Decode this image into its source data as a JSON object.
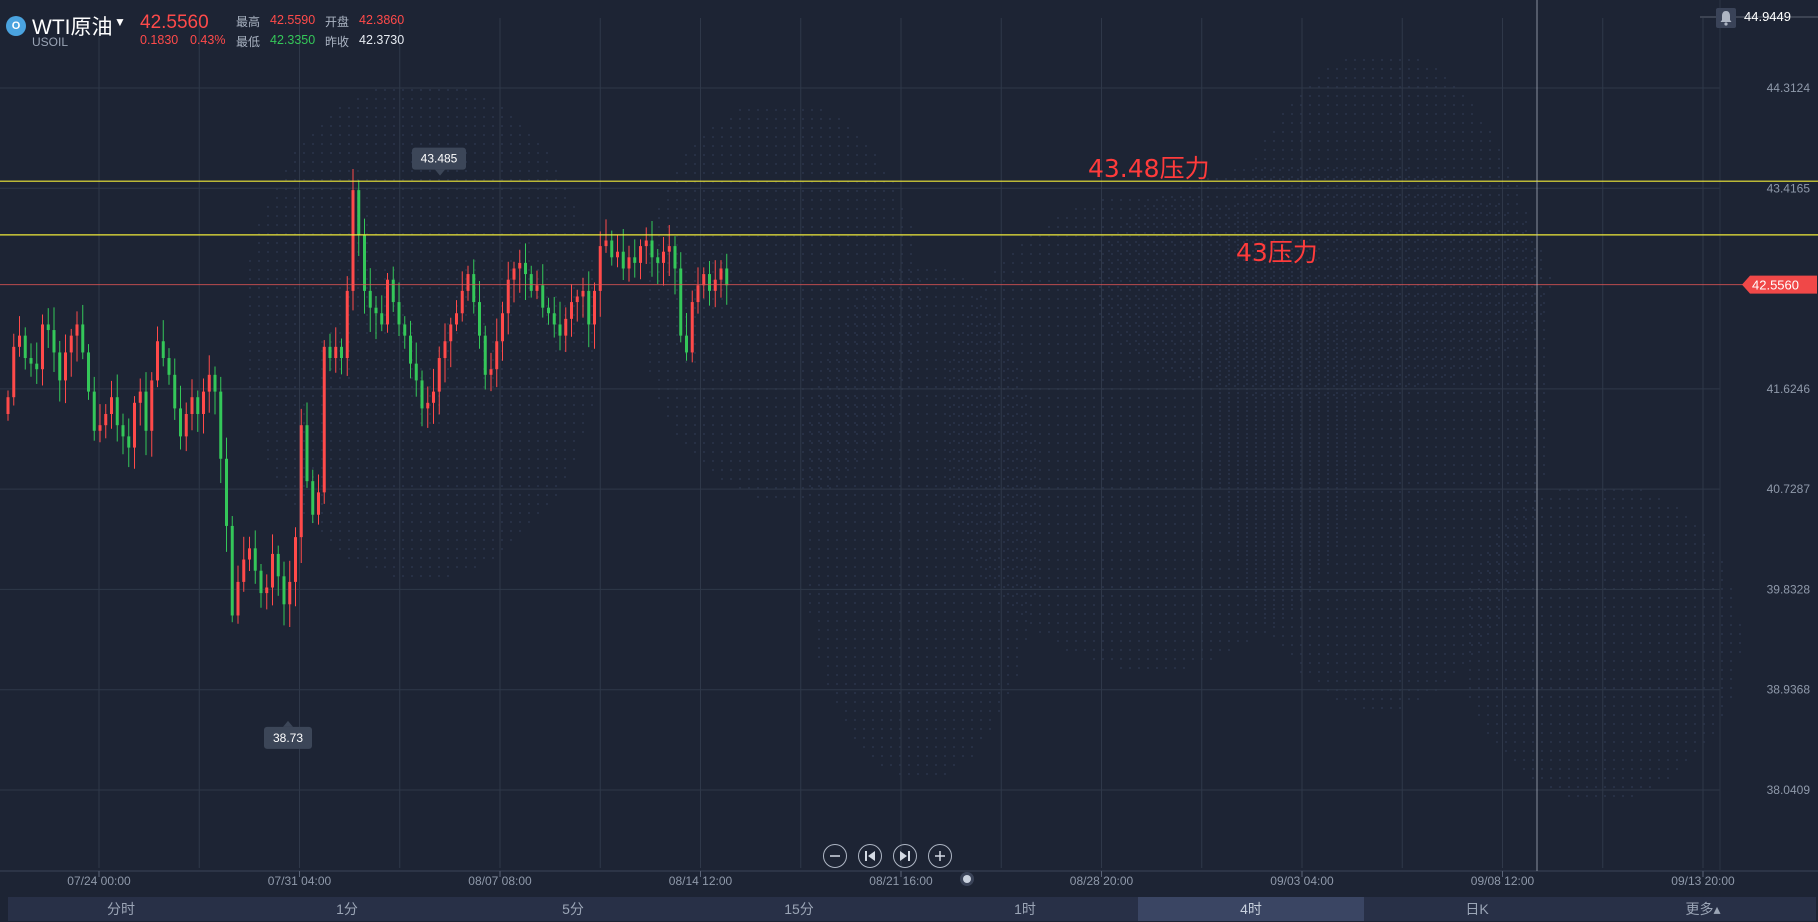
{
  "header": {
    "logo_glyph": "O",
    "symbol_name": "WTI原油",
    "symbol_code": "USOIL",
    "last_price": "42.5560",
    "change": "0.1830",
    "change_pct": "0.43%",
    "high_label": "最高",
    "high_value": "42.5590",
    "open_label": "开盘",
    "open_value": "42.3860",
    "low_label": "最低",
    "low_value": "42.3350",
    "prev_close_label": "昨收",
    "prev_close_value": "42.3730"
  },
  "crosshair": {
    "price_label": "44.9449"
  },
  "chart_data": {
    "type": "candlestick",
    "interval": "4时",
    "y_ticks": [
      "44.3124",
      "43.4165",
      "41.6246",
      "40.7287",
      "39.8328",
      "38.9368",
      "38.0409"
    ],
    "y_tick_values": [
      44.3124,
      43.4165,
      41.6246,
      40.7287,
      39.8328,
      38.9368,
      38.0409
    ],
    "ylim": [
      37.5,
      44.95
    ],
    "x_ticks": [
      "07/24 00:00",
      "07/31 04:00",
      "08/07 08:00",
      "08/14 12:00",
      "08/21 16:00",
      "08/28 20:00",
      "09/03 04:00",
      "09/08 12:00",
      "09/13 20:00"
    ],
    "current_price": "42.5560",
    "max_marker": "43.485",
    "min_marker": "38.73",
    "horizontal_lines": [
      {
        "value": 43.48,
        "label": "43.48压力",
        "color": "#f0ea38"
      },
      {
        "value": 43.0,
        "label": "43压力",
        "color": "#f0ea38"
      }
    ],
    "close_series": [
      41.55,
      42.0,
      42.1,
      41.9,
      41.85,
      41.8,
      42.2,
      42.15,
      41.95,
      41.7,
      41.95,
      42.1,
      42.2,
      41.95,
      41.6,
      41.25,
      41.3,
      41.4,
      41.55,
      41.3,
      41.2,
      41.1,
      41.5,
      41.6,
      41.25,
      41.7,
      42.05,
      41.9,
      41.75,
      41.45,
      41.2,
      41.4,
      41.55,
      41.4,
      41.6,
      41.75,
      41.6,
      41.0,
      40.4,
      39.6,
      39.9,
      40.1,
      40.2,
      40.0,
      39.8,
      39.85,
      40.15,
      39.95,
      39.7,
      39.9,
      40.3,
      41.3,
      40.8,
      40.5,
      40.7,
      42.0,
      41.9,
      42.0,
      41.9,
      42.5,
      43.4,
      43.0,
      42.5,
      42.35,
      42.3,
      42.2,
      42.6,
      42.4,
      42.2,
      42.1,
      41.85,
      41.7,
      41.45,
      41.5,
      41.6,
      41.9,
      42.05,
      42.2,
      42.3,
      42.5,
      42.65,
      42.4,
      42.1,
      41.75,
      41.8,
      42.05,
      42.3,
      42.6,
      42.7,
      42.75,
      42.65,
      42.5,
      42.55,
      42.35,
      42.3,
      42.2,
      42.1,
      42.25,
      42.4,
      42.45,
      42.5,
      42.2,
      42.5,
      42.9,
      42.95,
      42.8,
      42.85,
      42.7,
      42.8,
      42.75,
      42.9,
      42.95,
      42.8,
      42.75,
      42.85,
      42.9,
      42.7,
      42.1,
      41.95,
      42.4,
      42.55,
      42.65,
      42.5,
      42.6,
      42.7,
      42.55
    ]
  },
  "nav": {
    "zoom_out": "zoom-out",
    "skip_start": "skip-to-start",
    "skip_end": "skip-to-end",
    "zoom_in": "zoom-in"
  },
  "timeframes": [
    "分时",
    "1分",
    "5分",
    "15分",
    "1时",
    "4时",
    "日K",
    "更多▴"
  ],
  "active_timeframe": 5,
  "colors": {
    "up": "#ff4a4a",
    "down": "#34c759",
    "background": "#1d2434",
    "grid": "#2f3849",
    "resistance": "#f0ea38",
    "annotation": "#ff3b3b"
  }
}
